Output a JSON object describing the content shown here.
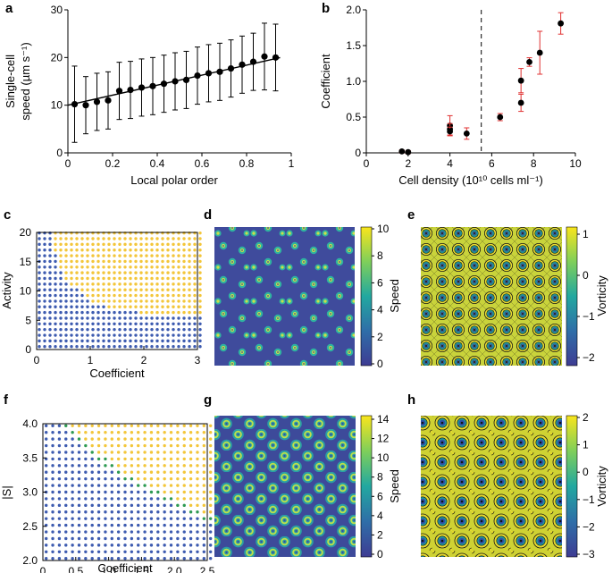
{
  "panels": {
    "a": {
      "label": "a",
      "title": "",
      "xlabel": "Local polar order",
      "ylabel_line1": "Single-cell",
      "ylabel_line2": "speed (µm s⁻¹)",
      "xticks": [
        "0",
        "0.2",
        "0.4",
        "0.6",
        "0.8",
        "1"
      ],
      "yticks": [
        "0",
        "10",
        "20",
        "30"
      ]
    },
    "b": {
      "label": "b",
      "xlabel": "Cell density (10¹⁰ cells ml⁻¹)",
      "ylabel": "Coefficient",
      "xticks": [
        "0",
        "2",
        "4",
        "6",
        "8",
        "10"
      ],
      "yticks": [
        "0",
        "0.5",
        "1.0",
        "1.5",
        "2.0"
      ]
    },
    "c": {
      "label": "c",
      "xlabel": "Coefficient",
      "ylabel": "Activity",
      "xticks": [
        "0",
        "1",
        "2",
        "3"
      ],
      "yticks": [
        "0",
        "5",
        "10",
        "15",
        "20"
      ]
    },
    "d": {
      "label": "d",
      "colorbar_label": "Speed",
      "colorbar_ticks": [
        "10",
        "8",
        "6",
        "4",
        "2",
        "0"
      ]
    },
    "e": {
      "label": "e",
      "colorbar_label": "Vorticity",
      "colorbar_ticks": [
        "1",
        "0",
        "−1",
        "−2"
      ]
    },
    "f": {
      "label": "f",
      "xlabel": "Coefficient",
      "ylabel": "|S|",
      "xticks": [
        "0",
        "0.5",
        "1.0",
        "1.5",
        "2.0",
        "2.5"
      ],
      "yticks": [
        "4.0",
        "3.5",
        "3.0",
        "2.5",
        "2.0"
      ]
    },
    "g": {
      "label": "g",
      "colorbar_label": "Speed",
      "colorbar_ticks": [
        "14",
        "12",
        "10",
        "8",
        "6",
        "4",
        "2",
        "0"
      ]
    },
    "h": {
      "label": "h",
      "colorbar_label": "Vorticity",
      "colorbar_ticks": [
        "2",
        "1",
        "0",
        "−1",
        "−2",
        "−3"
      ]
    }
  },
  "colors": {
    "viridis_low": "#3e3c93",
    "viridis_mid": "#22a8a0",
    "viridis_high": "#f9e51c",
    "phase_blue": "#3d5bb0",
    "phase_yellow": "#f3c63a",
    "phase_green": "#2e9a52",
    "error_red": "#e03030"
  },
  "chart_data": [
    {
      "type": "scatter",
      "panel": "a",
      "xlabel": "Local polar order",
      "ylabel": "Single-cell speed (µm s⁻¹)",
      "xlim": [
        0,
        1
      ],
      "ylim": [
        0,
        30
      ],
      "x": [
        0.03,
        0.08,
        0.13,
        0.18,
        0.23,
        0.28,
        0.33,
        0.38,
        0.43,
        0.48,
        0.53,
        0.58,
        0.63,
        0.68,
        0.73,
        0.78,
        0.83,
        0.88,
        0.93
      ],
      "y": [
        10.2,
        10.0,
        10.7,
        11.0,
        13.0,
        13.2,
        13.7,
        14.0,
        14.5,
        15.0,
        15.3,
        16.2,
        16.7,
        17.0,
        17.7,
        18.5,
        19.1,
        20.2,
        20.0
      ],
      "err": [
        8,
        6,
        6,
        6,
        6,
        6,
        6,
        6,
        6,
        6,
        6,
        6,
        6,
        6,
        6,
        6,
        6,
        7,
        7
      ],
      "fit_line": {
        "x": [
          0.0,
          1.0
        ],
        "y": [
          10.0,
          20.5
        ]
      }
    },
    {
      "type": "scatter",
      "panel": "b",
      "xlabel": "Cell density (10¹⁰ cells ml⁻¹)",
      "ylabel": "Coefficient",
      "xlim": [
        0,
        10
      ],
      "ylim": [
        0,
        2.0
      ],
      "dashed_vline_x": 5.5,
      "x": [
        1.7,
        2.0,
        4.0,
        4.0,
        4.0,
        4.8,
        6.4,
        7.4,
        7.4,
        7.8,
        8.3,
        9.3
      ],
      "y": [
        0.02,
        0.01,
        0.38,
        0.33,
        0.3,
        0.27,
        0.5,
        1.01,
        0.7,
        1.27,
        1.4,
        1.81
      ],
      "err": [
        0.02,
        0.02,
        0.14,
        0.08,
        0.06,
        0.08,
        0.05,
        0.17,
        0.12,
        0.06,
        0.3,
        0.15
      ]
    },
    {
      "type": "heatmap",
      "panel": "c",
      "xlabel": "Coefficient",
      "ylabel": "Activity",
      "xlim": [
        0,
        3
      ],
      "ylim": [
        0,
        20
      ],
      "phases": [
        "blue",
        "yellow"
      ],
      "boundary": {
        "x": [
          0.25,
          0.3,
          0.5,
          1.0,
          1.5,
          2.0,
          2.5,
          3.0
        ],
        "y": [
          20,
          17.5,
          12.5,
          8.0,
          6.8,
          6.2,
          5.8,
          5.5
        ]
      }
    },
    {
      "type": "heatmap",
      "panel": "f",
      "xlabel": "Coefficient",
      "ylabel": "|S|",
      "xlim": [
        0,
        2.5
      ],
      "ylim": [
        2.0,
        4.0
      ],
      "phases": [
        "blue",
        "green",
        "yellow"
      ],
      "boundary": {
        "x": [
          0.3,
          0.8,
          1.3,
          1.8,
          2.3,
          2.5
        ],
        "y": [
          4.0,
          3.55,
          3.2,
          2.95,
          2.7,
          2.6
        ]
      }
    }
  ]
}
